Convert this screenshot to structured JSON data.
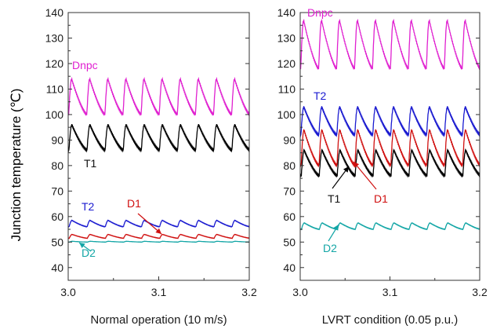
{
  "figure": {
    "ylabel": "Junction temperature (℃)"
  },
  "chart_data": [
    {
      "type": "line",
      "xlabel": "Normal operation (10 m/s)",
      "ylabel": "Junction temperature (℃)",
      "xlim": [
        3.0,
        3.2
      ],
      "ylim": [
        35,
        140
      ],
      "xticks": [
        "3.0",
        "3.1",
        "3.2"
      ],
      "yticks": [
        "40",
        "50",
        "60",
        "70",
        "80",
        "90",
        "100",
        "110",
        "120",
        "130",
        "140"
      ],
      "cycles": 10,
      "series": [
        {
          "name": "Dnpc",
          "color": "#e020d0",
          "min": 100,
          "max": 114
        },
        {
          "name": "T1",
          "color": "#000000",
          "min": 86,
          "max": 96
        },
        {
          "name": "T2",
          "color": "#1a1ad0",
          "min": 56,
          "max": 58.5
        },
        {
          "name": "D1",
          "color": "#d01010",
          "min": 51.5,
          "max": 53
        },
        {
          "name": "D2",
          "color": "#13a6a6",
          "min": 50,
          "max": 50.3
        }
      ]
    },
    {
      "type": "line",
      "xlabel": "LVRT condition (0.05 p.u.)",
      "xlim": [
        3.0,
        3.2
      ],
      "ylim": [
        35,
        140
      ],
      "xticks": [
        "3.0",
        "3.1",
        "3.2"
      ],
      "yticks": [
        "40",
        "50",
        "60",
        "70",
        "80",
        "90",
        "100",
        "110",
        "120",
        "130",
        "140"
      ],
      "cycles": 10,
      "series": [
        {
          "name": "Dnpc",
          "color": "#e020d0",
          "min": 118,
          "max": 137
        },
        {
          "name": "T2",
          "color": "#1a1ad0",
          "min": 92,
          "max": 103
        },
        {
          "name": "D1",
          "color": "#d01010",
          "min": 80,
          "max": 94
        },
        {
          "name": "T1",
          "color": "#000000",
          "min": 76,
          "max": 86
        },
        {
          "name": "D2",
          "color": "#13a6a6",
          "min": 55,
          "max": 57.5
        }
      ]
    }
  ]
}
